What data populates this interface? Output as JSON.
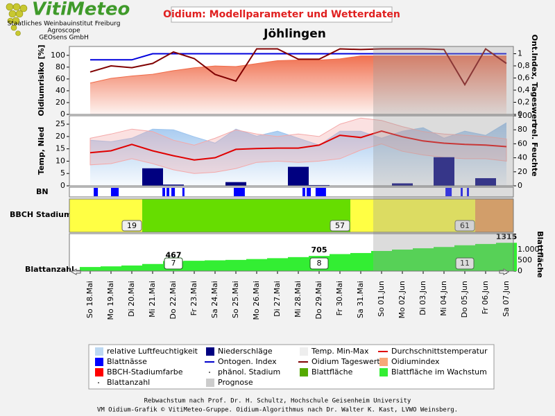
{
  "header": {
    "logo": "VitiMeteo",
    "institutions": [
      "Staatliches Weinbauinstitut Freiburg",
      "Agroscope",
      "GEOsens GmbH"
    ],
    "title": "Oidium: Modellparameter und Wetterdaten",
    "location": "Jöhlingen"
  },
  "prognosis": {
    "start": 13.6
  },
  "chart_data": [
    {
      "type": "line",
      "ylabel": "Oidiumrisiko [%]",
      "y2label": "Ont.Index, Tageswert",
      "ylim": [
        0,
        115
      ],
      "yticks": [
        0,
        20,
        40,
        60,
        80,
        100
      ],
      "y2lim": [
        0,
        1.12
      ],
      "y2ticks": [
        0,
        {
          "value": 0.2,
          "label": "0,2"
        },
        {
          "value": 0.4,
          "label": "0,4"
        },
        {
          "value": 0.6,
          "label": "0,6"
        },
        {
          "value": 0.8,
          "label": "0,8"
        },
        1
      ],
      "series": [
        {
          "style": "area",
          "color": "#f06a48",
          "values": [
            53,
            61,
            65,
            68,
            74,
            79,
            82,
            81,
            86,
            91,
            92,
            92,
            94,
            99,
            99,
            99,
            99,
            99,
            99,
            99,
            99
          ]
        },
        {
          "style": "line",
          "axis": "y2",
          "color": "#0000dd",
          "values": [
            0.9,
            0.9,
            0.9,
            1,
            1,
            1,
            1,
            1,
            1,
            1,
            1,
            1,
            1,
            1,
            1,
            1,
            1,
            1,
            1,
            1,
            1
          ]
        },
        {
          "style": "line",
          "axis": "y2",
          "color": "#800000",
          "values": [
            0.7,
            0.8,
            0.77,
            0.84,
            1.03,
            0.92,
            0.66,
            0.55,
            1.08,
            1.08,
            0.91,
            0.91,
            1.08,
            1.07,
            1.08,
            1.08,
            1.08,
            1.07,
            0.49,
            1.08,
            0.84
          ]
        }
      ]
    },
    {
      "type": "line",
      "ylabel": "Temp, Nied",
      "y2label": "rel. Feuchte",
      "ylim": [
        0,
        28.4
      ],
      "yticks": [
        0,
        5,
        10,
        15,
        20,
        25
      ],
      "y2lim": [
        0,
        100
      ],
      "y2ticks": [
        0,
        20,
        40,
        60,
        80,
        100
      ],
      "series": [
        {
          "style": "area",
          "axis": "y2",
          "color": "#9cc4ee",
          "values": [
            65,
            63,
            68,
            81,
            80,
            70,
            61,
            81,
            71,
            78,
            68,
            58,
            78,
            78,
            68,
            78,
            83,
            68,
            78,
            72,
            90
          ]
        },
        {
          "style": "band",
          "color": "#f4a8a8",
          "values": [
            19.3,
            21,
            23,
            22,
            18.5,
            16.5,
            19.3,
            22.7,
            21,
            20,
            21,
            20,
            25,
            27.5,
            26.5,
            24,
            22,
            21,
            20.5,
            20,
            19
          ],
          "low": [
            8.5,
            9,
            11,
            9,
            6.5,
            5,
            5.5,
            7,
            9.5,
            10,
            9.5,
            10,
            11,
            14.5,
            17,
            14,
            12.5,
            11.5,
            11,
            11,
            10
          ]
        },
        {
          "style": "bar",
          "color": "#000080",
          "values": [
            0,
            0,
            0,
            7.1,
            0.5,
            0,
            0,
            1.5,
            0,
            0,
            7.7,
            0.3,
            0,
            0,
            0,
            1,
            0,
            11.6,
            0,
            3.1,
            0
          ]
        },
        {
          "style": "line",
          "color": "#e00000",
          "values": [
            13.4,
            14.2,
            16.8,
            14.2,
            12.2,
            10.5,
            11.4,
            14.8,
            15.1,
            15.3,
            15.3,
            16.5,
            20.5,
            19.6,
            22.2,
            19.9,
            18.2,
            17.3,
            16.8,
            16.5,
            15.9
          ]
        }
      ]
    },
    {
      "type": "timeline",
      "label": "BN",
      "color": "#0000ff",
      "segments": [
        [
          0.17,
          0.37
        ],
        [
          1.0,
          1.37
        ],
        [
          3.47,
          3.6
        ],
        [
          3.67,
          3.8
        ],
        [
          3.9,
          4.07
        ],
        [
          4.43,
          4.53
        ],
        [
          6.9,
          7.43
        ],
        [
          10.2,
          10.33
        ],
        [
          10.4,
          10.6
        ],
        [
          10.83,
          11.33
        ],
        [
          17.07,
          17.37
        ],
        [
          17.8,
          17.9
        ],
        [
          18.1,
          18.2
        ]
      ]
    },
    {
      "type": "phases",
      "label": "BBCH Stadium",
      "phases": [
        {
          "start": -1,
          "end": 2.5,
          "color": "#ffff44"
        },
        {
          "start": 2.5,
          "end": 12.5,
          "color": "#66dd00"
        },
        {
          "start": 12.5,
          "end": 18.5,
          "color": "#ffff44"
        },
        {
          "start": 18.5,
          "end": 20.33,
          "color": "#f0a050"
        }
      ],
      "stages": [
        {
          "x": 2,
          "value": 19
        },
        {
          "x": 12,
          "value": 57
        },
        {
          "x": 18,
          "value": 61
        }
      ]
    },
    {
      "type": "step",
      "label": "Blattanzahl",
      "y2label": "Blattfläche",
      "categories": [
        "So 18.Mai",
        "Mo 19.Mai",
        "Di 20.Mai",
        "Mi 21.Mai",
        "Do 22.Mai",
        "Fr 23.Mai",
        "Sa 24.Mai",
        "So 25.Mai",
        "Mo 26.Mai",
        "Di 27.Mai",
        "Mi 28.Mai",
        "Do 29.Mai",
        "Fr 30.Mai",
        "Sa 31.Mai",
        "So 01.Jun",
        "Mo 02.Jun",
        "Di 03.Jun",
        "Mi 04.Jun",
        "Do 05.Jun",
        "Fr 06.Jun",
        "Sa 07.Jun"
      ],
      "y2lim": [
        0,
        1740
      ],
      "y2ticks": [
        0,
        500,
        {
          "value": 1000,
          "label": "1.000"
        }
      ],
      "color": "#33ee33",
      "values": [
        190,
        220,
        260,
        330,
        467,
        480,
        500,
        520,
        560,
        600,
        650,
        705,
        790,
        840,
        935,
        1000,
        1060,
        1120,
        1200,
        1260,
        1315
      ],
      "value_labels": [
        null,
        null,
        null,
        null,
        "467",
        null,
        null,
        null,
        null,
        null,
        null,
        "705",
        null,
        null,
        null,
        null,
        null,
        null,
        null,
        null,
        "1315"
      ],
      "leaf_counts": [
        {
          "x": 4,
          "value": 7
        },
        {
          "x": 11,
          "value": 8
        },
        {
          "x": 18,
          "value": 11
        }
      ]
    }
  ],
  "legend": [
    {
      "name": "relative Luftfeuchtigkeit",
      "color": "#bcd8f2",
      "symbol": "box"
    },
    {
      "name": "Niederschläge",
      "color": "#000080",
      "symbol": "box"
    },
    {
      "name": "Temp. Min-Max",
      "color": "#eeeeee",
      "symbol": "box"
    },
    {
      "name": "Durchschnittstemperatur",
      "color": "#e00000",
      "symbol": "line"
    },
    {
      "name": "Blattnässe",
      "color": "#0000ff",
      "symbol": "box"
    },
    {
      "name": "Ontogen. Index",
      "color": "#0000cc",
      "symbol": "line"
    },
    {
      "name": "Oidium Tageswert",
      "color": "#800000",
      "symbol": "line"
    },
    {
      "name": "Oidiumindex",
      "color": "#f8a878",
      "symbol": "box"
    },
    {
      "name": "BBCH-Stadiumfarbe",
      "color": "#ff0000",
      "symbol": "box"
    },
    {
      "name": "phänol. Stadium",
      "color": "#444444",
      "symbol": "dot"
    },
    {
      "name": "Blattfläche",
      "color": "#55aa00",
      "symbol": "box"
    },
    {
      "name": "Blattfläche im Wachstum",
      "color": "#33ee33",
      "symbol": "box"
    },
    {
      "name": "Blattanzahl",
      "color": "#444444",
      "symbol": "dot"
    },
    {
      "name": "Prognose",
      "color": "#cccccc",
      "symbol": "box"
    }
  ],
  "footer": [
    "Rebwachstum nach Prof. Dr. H. Schultz, Hochschule Geisenheim University",
    "VM Oidium-Grafik © VitiMeteo-Gruppe. Oidium-Algorithmus nach Dr. Walter K. Kast, LVWO Weinsberg."
  ]
}
